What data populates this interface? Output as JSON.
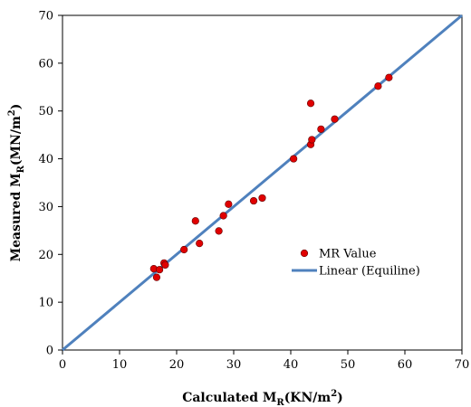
{
  "chart_data": {
    "type": "scatter",
    "title": "",
    "xlabel": {
      "main": "Calculated M",
      "sub": "R",
      "unit": "(KN/m",
      "sup": "2",
      "close": ")"
    },
    "ylabel": {
      "main": "Measured M",
      "sub": "R",
      "unit": "(MN/m",
      "sup": "2",
      "close": ")"
    },
    "xlim": [
      0,
      70
    ],
    "ylim": [
      0,
      70
    ],
    "xticks": [
      0,
      10,
      20,
      30,
      40,
      50,
      60,
      70
    ],
    "yticks": [
      0,
      10,
      20,
      30,
      40,
      50,
      60,
      70
    ],
    "grid": false,
    "legend_position": "middle-right",
    "series": [
      {
        "name": "MR Value",
        "kind": "scatter",
        "color": "#e00000",
        "points": [
          [
            16.0,
            17.0
          ],
          [
            16.5,
            15.2
          ],
          [
            17.0,
            16.8
          ],
          [
            17.8,
            18.2
          ],
          [
            18.0,
            17.8
          ],
          [
            21.3,
            21.0
          ],
          [
            23.3,
            27.0
          ],
          [
            24.0,
            22.3
          ],
          [
            27.4,
            24.9
          ],
          [
            28.2,
            28.1
          ],
          [
            29.1,
            30.5
          ],
          [
            33.5,
            31.2
          ],
          [
            35.0,
            31.8
          ],
          [
            40.5,
            40.0
          ],
          [
            43.5,
            51.6
          ],
          [
            43.5,
            43.0
          ],
          [
            43.7,
            44.0
          ],
          [
            45.3,
            46.2
          ],
          [
            47.7,
            48.3
          ],
          [
            55.3,
            55.2
          ],
          [
            57.2,
            57.0
          ]
        ]
      },
      {
        "name": "Linear (Equiline)",
        "kind": "line",
        "color": "#4f81bd",
        "points": [
          [
            0,
            0
          ],
          [
            70,
            70
          ]
        ]
      }
    ]
  }
}
